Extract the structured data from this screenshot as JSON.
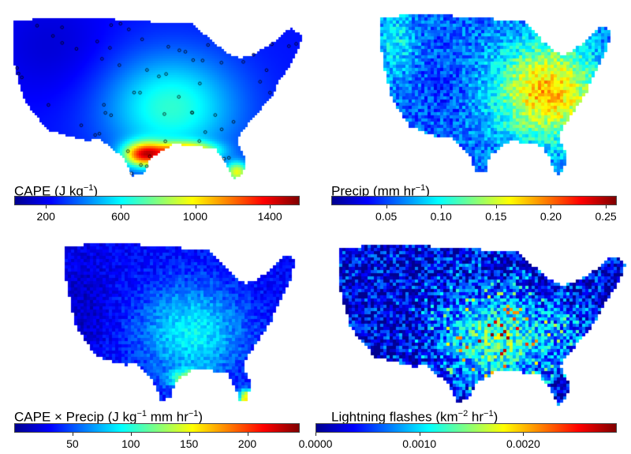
{
  "panels": [
    {
      "key": "cape",
      "title_main": "CAPE",
      "unit_pre": "J kg",
      "unit_sup": "−1",
      "unit_mid": "",
      "unit_sup2": "",
      "title_text": "CAPE (J kg−1)",
      "ticks": [
        "200",
        "600",
        "1000",
        "1400"
      ],
      "tick_values": [
        200,
        600,
        1000,
        1400
      ],
      "range": [
        30,
        1560
      ],
      "field": "cape",
      "stations": true
    },
    {
      "key": "precip",
      "title_main": "Precip",
      "unit_pre": "mm hr",
      "unit_sup": "−1",
      "unit_mid": "",
      "unit_sup2": "",
      "title_text": "Precip (mm hr−1)",
      "ticks": [
        "0.05",
        "0.10",
        "0.15",
        "0.20",
        "0.25"
      ],
      "tick_values": [
        0.05,
        0.1,
        0.15,
        0.2,
        0.25
      ],
      "range": [
        0.0,
        0.26
      ],
      "field": "precip",
      "stations": false
    },
    {
      "key": "capexprecip",
      "title_main": "CAPE × Precip",
      "unit_pre": "J kg",
      "unit_sup": "−1",
      "unit_mid": " mm hr",
      "unit_sup2": "−1",
      "title_text": "CAPE × Precip (J kg−1 mm hr−1)",
      "ticks": [
        "50",
        "100",
        "150",
        "200"
      ],
      "tick_values": [
        50,
        100,
        150,
        200
      ],
      "range": [
        0,
        245
      ],
      "field": "product",
      "stations": false
    },
    {
      "key": "lightning",
      "title_main": "Lightning flashes",
      "unit_pre": "km",
      "unit_sup": "−2",
      "unit_mid": " hr",
      "unit_sup2": "−1",
      "title_text": "Lightning flashes (km−2 hr−1)",
      "ticks": [
        "0.0000",
        "0.0010",
        "0.0020"
      ],
      "tick_values": [
        0.0,
        0.001,
        0.002
      ],
      "range": [
        0.0,
        0.0029
      ],
      "field": "lightning",
      "stations": false
    }
  ],
  "colormap": [
    "#00008f",
    "#0000ff",
    "#0080ff",
    "#00ffff",
    "#80ff80",
    "#ffff00",
    "#ff8000",
    "#ff0000",
    "#800000"
  ]
}
